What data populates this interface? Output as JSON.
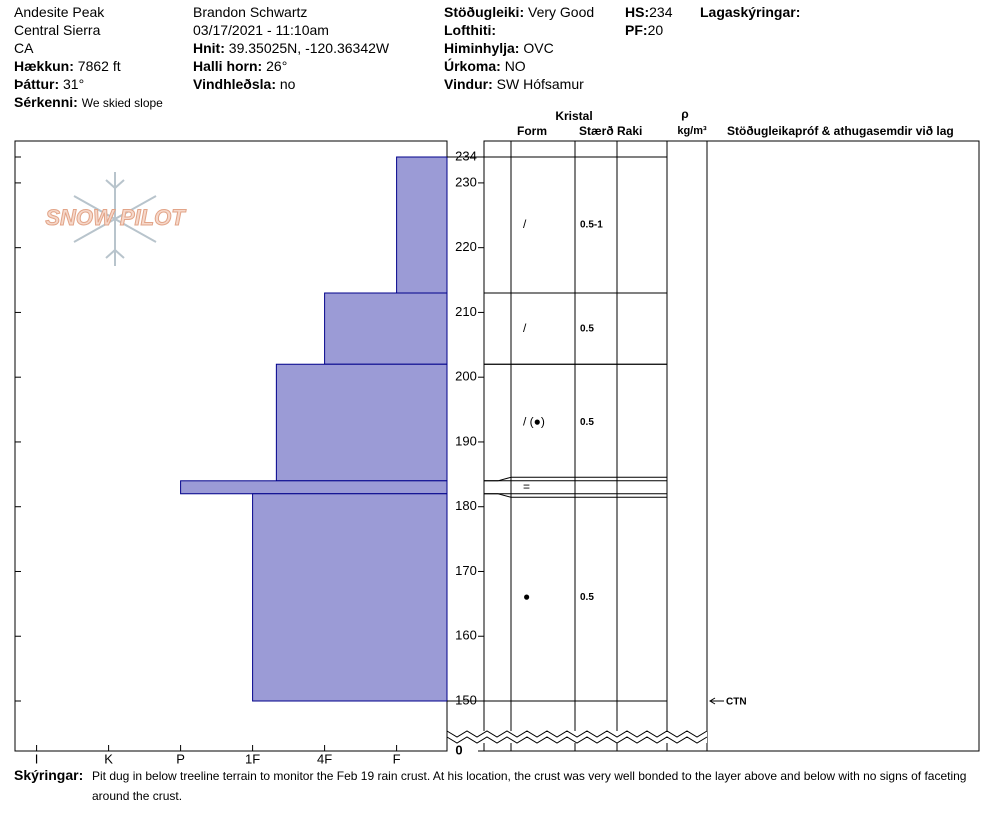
{
  "header": {
    "site": "Andesite Peak",
    "range": "Central Sierra",
    "state": "CA",
    "observer": "Brandon Schwartz",
    "datetime": "03/17/2021 - 11:10am",
    "legend_title": "Lagaskýringar:",
    "fields": [
      {
        "label": "Hækkun:",
        "value": "7862 ft"
      },
      {
        "label": "Þáttur:",
        "value": "31°"
      },
      {
        "label": "Sérkenni:",
        "value": "We skied slope"
      },
      {
        "label": "Hnit:",
        "value": "39.35025N, -120.36342W"
      },
      {
        "label": "Halli horn:",
        "value": "26°"
      },
      {
        "label": "Vindhleðsla:",
        "value": "no"
      },
      {
        "label": "Stöðugleiki:",
        "value": "Very Good"
      },
      {
        "label": "Lofthiti:"
      },
      {
        "label": "Himinhylja:",
        "value": "OVC"
      },
      {
        "label": "Úrkoma:",
        "value": "NO"
      },
      {
        "label": "Vindur:",
        "value": "SW Hófsamur"
      },
      {
        "label": "HS:",
        "value": 234
      },
      {
        "label": "PF:",
        "value": 20
      }
    ]
  },
  "chart_data": {
    "type": "snow-profile",
    "logo": "SNOW PILOT",
    "ylim": [
      150,
      234
    ],
    "yticks": [
      150,
      160,
      170,
      180,
      190,
      200,
      210,
      220,
      230,
      234
    ],
    "axis_break_bottom": 0,
    "xlim": [
      6.3,
      0.3
    ],
    "xticks": [
      {
        "value": 6,
        "label": "I"
      },
      {
        "value": 5,
        "label": "K"
      },
      {
        "value": 4,
        "label": "P"
      },
      {
        "value": 3,
        "label": "1F"
      },
      {
        "value": 2,
        "label": "4F"
      },
      {
        "value": 1,
        "label": "F"
      }
    ],
    "bar_color": "#9b9bd6",
    "edge_color": "#00008b",
    "layers": [
      {
        "top": 234,
        "bottom": 213,
        "hardness": 1,
        "form": "/",
        "size": "0.5-1"
      },
      {
        "top": 213,
        "bottom": 202,
        "hardness": 2,
        "form": "/",
        "size": "0.5"
      },
      {
        "top": 202,
        "bottom": 184,
        "hardness": 2.67,
        "form": "/ (●)",
        "size": "0.5"
      },
      {
        "top": 184,
        "bottom": 182,
        "hardness": 4,
        "form": "="
      },
      {
        "top": 182,
        "bottom": 150,
        "hardness": 3,
        "form": "●",
        "size": "0.5"
      }
    ],
    "columns": {
      "crystal": "Kristal",
      "form": "Form",
      "size": "Stærð",
      "moisture": "Raki",
      "density": "ρ",
      "density_unit": "kg/m³",
      "stability": "Stöðugleikapróf & athugasemdir við lag"
    },
    "tests": [
      {
        "label": "CTN",
        "height": 150
      }
    ],
    "comments_label": "Skýringar:",
    "comments": "Pit dug in below treeline terrain to monitor the Feb 19 rain crust. At his location, the crust was very well bonded to the layer above and below with no signs of faceting around the crust."
  }
}
